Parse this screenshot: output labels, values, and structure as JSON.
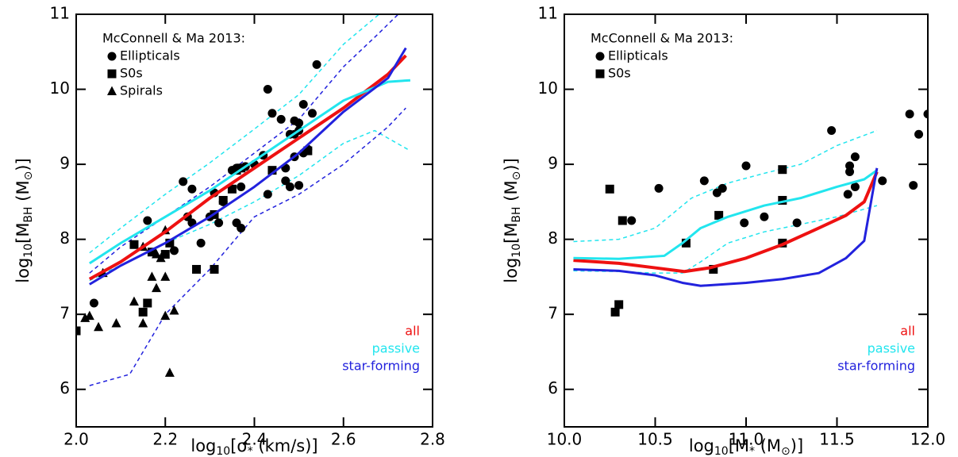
{
  "chart_data": [
    {
      "type": "line",
      "xlim": [
        2.0,
        2.8
      ],
      "ylim": [
        5.5,
        11
      ],
      "xticks": [
        {
          "value": 2.0,
          "label": "2.0"
        },
        {
          "value": 2.2,
          "label": "2.2"
        },
        {
          "value": 2.4,
          "label": "2.4"
        },
        {
          "value": 2.6,
          "label": "2.6"
        },
        {
          "value": 2.8,
          "label": "2.8"
        }
      ],
      "yticks": [
        6,
        7,
        8,
        9,
        10,
        11
      ],
      "x_label": [
        "log",
        "10",
        "[σ",
        "*",
        " (km/s)]"
      ],
      "y_label": [
        "log",
        "10",
        "[M",
        "BH",
        " (M",
        "⊙",
        ")]"
      ],
      "legend_title": "McConnell & Ma 2013:",
      "scatter_legend_loc": "upper left",
      "legend_loc": "lower right",
      "scatter": [
        {
          "name": "Ellipticals",
          "marker": "circle",
          "color": "#000000",
          "x": [
            2.54,
            2.43,
            2.44,
            2.46,
            2.48,
            2.49,
            2.5,
            2.51,
            2.53,
            2.5,
            2.42,
            2.4,
            2.38,
            2.36,
            2.37,
            2.36,
            2.37,
            2.32,
            2.3,
            2.31,
            2.33,
            2.35,
            2.26,
            2.24,
            2.25,
            2.26,
            2.28,
            2.22,
            2.16,
            2.43,
            2.47,
            2.48,
            2.5,
            2.47,
            2.49,
            2.51,
            2.52,
            2.04,
            2.49
          ],
          "values": [
            10.33,
            10.0,
            9.68,
            9.6,
            9.4,
            9.58,
            9.45,
            9.8,
            9.68,
            9.55,
            9.12,
            9.0,
            8.97,
            8.95,
            8.7,
            8.22,
            8.15,
            8.22,
            8.3,
            8.62,
            8.5,
            8.92,
            8.67,
            8.77,
            8.3,
            8.22,
            7.95,
            7.85,
            8.25,
            8.6,
            8.78,
            8.7,
            8.72,
            8.95,
            9.1,
            9.15,
            9.2,
            7.15,
            9.4
          ]
        },
        {
          "name": "S0s",
          "marker": "square",
          "color": "#000000",
          "x": [
            2.13,
            2.17,
            2.21,
            2.2,
            2.27,
            2.31,
            2.31,
            2.33,
            2.35,
            2.36,
            2.37,
            2.44,
            2.52,
            2.16,
            2.15,
            2.0
          ],
          "values": [
            7.93,
            7.83,
            7.95,
            7.8,
            7.6,
            7.6,
            8.33,
            8.52,
            8.67,
            8.92,
            8.95,
            8.92,
            9.18,
            7.15,
            7.03,
            6.78
          ]
        },
        {
          "name": "Spirals",
          "marker": "triangle",
          "color": "#000000",
          "x": [
            2.02,
            2.03,
            2.05,
            2.06,
            2.09,
            2.13,
            2.15,
            2.17,
            2.18,
            2.19,
            2.2,
            2.2,
            2.21,
            2.22,
            2.2,
            2.15,
            2.18
          ],
          "values": [
            6.95,
            6.98,
            6.83,
            7.55,
            6.88,
            7.17,
            6.88,
            7.5,
            7.35,
            7.75,
            7.5,
            6.98,
            6.22,
            7.05,
            8.12,
            7.9,
            7.8
          ]
        }
      ],
      "series": [
        {
          "name": "all",
          "color": "#ee1111",
          "width": 4,
          "x": [
            2.03,
            2.1,
            2.2,
            2.3,
            2.4,
            2.5,
            2.6,
            2.7,
            2.74
          ],
          "values": [
            7.47,
            7.7,
            8.1,
            8.55,
            8.95,
            9.35,
            9.75,
            10.2,
            10.45
          ]
        },
        {
          "name": "passive",
          "color": "#22e5ee",
          "width": 3,
          "x": [
            2.03,
            2.1,
            2.2,
            2.3,
            2.4,
            2.5,
            2.6,
            2.7,
            2.75
          ],
          "values": [
            7.68,
            7.95,
            8.3,
            8.65,
            9.05,
            9.45,
            9.85,
            10.1,
            10.12
          ],
          "upper": {
            "x": [
              2.03,
              2.1,
              2.2,
              2.3,
              2.4,
              2.5,
              2.6,
              2.68
            ],
            "values": [
              7.82,
              8.15,
              8.6,
              9.02,
              9.47,
              9.93,
              10.6,
              11.0
            ]
          },
          "lower": {
            "x": [
              2.03,
              2.2,
              2.3,
              2.4,
              2.5,
              2.6,
              2.67,
              2.75
            ],
            "values": [
              7.45,
              7.95,
              8.2,
              8.5,
              8.85,
              9.28,
              9.45,
              9.18
            ]
          }
        },
        {
          "name": "star-forming",
          "color": "#2222dd",
          "width": 3,
          "x": [
            2.03,
            2.1,
            2.2,
            2.3,
            2.4,
            2.5,
            2.6,
            2.7,
            2.74
          ],
          "values": [
            7.4,
            7.65,
            7.95,
            8.3,
            8.7,
            9.15,
            9.7,
            10.15,
            10.55
          ],
          "upper": {
            "x": [
              2.03,
              2.1,
              2.2,
              2.3,
              2.4,
              2.5,
              2.6,
              2.68,
              2.74
            ],
            "values": [
              7.55,
              7.9,
              8.3,
              8.7,
              9.15,
              9.6,
              10.3,
              10.75,
              11.1
            ]
          },
          "lower": {
            "x": [
              2.03,
              2.12,
              2.2,
              2.3,
              2.4,
              2.5,
              2.6,
              2.7,
              2.74
            ],
            "values": [
              6.05,
              6.2,
              7.0,
              7.6,
              8.3,
              8.6,
              9.0,
              9.5,
              9.75
            ]
          }
        }
      ]
    },
    {
      "type": "line",
      "xlim": [
        10.0,
        12.0
      ],
      "ylim": [
        5.5,
        11
      ],
      "xticks": [
        {
          "value": 10.0,
          "label": "10.0"
        },
        10.5,
        {
          "value": 11.0,
          "label": "11.0"
        },
        11.5,
        {
          "value": 12.0,
          "label": "12.0"
        }
      ],
      "yticks": [
        6,
        7,
        8,
        9,
        10,
        11
      ],
      "x_label": [
        "log",
        "10",
        "[M",
        "*",
        " (M",
        "⊙",
        ")]"
      ],
      "y_label": [
        "log",
        "10",
        "[M",
        "BH",
        " (M",
        "⊙",
        ")]"
      ],
      "legend_title": "McConnell & Ma 2013:",
      "scatter_legend_loc": "upper left",
      "legend_loc": "lower right",
      "scatter": [
        {
          "name": "Ellipticals",
          "marker": "circle",
          "color": "#000000",
          "x": [
            10.37,
            10.52,
            10.77,
            10.84,
            10.87,
            11.0,
            10.99,
            11.1,
            11.28,
            11.47,
            11.56,
            11.57,
            11.57,
            11.6,
            11.6,
            11.75,
            11.9,
            11.92,
            11.95,
            12.0
          ],
          "values": [
            8.25,
            8.68,
            8.78,
            8.62,
            8.68,
            8.98,
            8.22,
            8.3,
            8.22,
            9.45,
            8.6,
            8.9,
            8.98,
            8.7,
            9.1,
            8.78,
            9.67,
            8.72,
            9.4,
            9.67
          ]
        },
        {
          "name": "S0s",
          "marker": "square",
          "color": "#000000",
          "x": [
            10.25,
            10.32,
            10.67,
            10.82,
            10.85,
            11.2,
            11.2,
            11.2,
            10.28,
            10.3
          ],
          "values": [
            8.67,
            8.25,
            7.95,
            7.6,
            8.32,
            8.93,
            8.52,
            7.95,
            7.03,
            7.13
          ]
        }
      ],
      "series": [
        {
          "name": "all",
          "color": "#ee1111",
          "width": 4,
          "x": [
            10.05,
            10.3,
            10.5,
            10.66,
            10.8,
            11.0,
            11.2,
            11.4,
            11.55,
            11.65,
            11.72
          ],
          "values": [
            7.72,
            7.68,
            7.62,
            7.57,
            7.62,
            7.75,
            7.93,
            8.15,
            8.32,
            8.5,
            8.9
          ]
        },
        {
          "name": "passive",
          "color": "#22e5ee",
          "width": 3,
          "x": [
            10.05,
            10.3,
            10.55,
            10.65,
            10.75,
            10.9,
            11.1,
            11.3,
            11.5,
            11.65,
            11.72
          ],
          "values": [
            7.75,
            7.74,
            7.78,
            7.95,
            8.15,
            8.3,
            8.45,
            8.55,
            8.7,
            8.8,
            8.92
          ],
          "upper": {
            "x": [
              10.05,
              10.3,
              10.5,
              10.7,
              10.9,
              11.1,
              11.3,
              11.5,
              11.72
            ],
            "values": [
              7.97,
              8.0,
              8.15,
              8.55,
              8.75,
              8.88,
              9.0,
              9.25,
              9.45
            ]
          },
          "lower": {
            "x": [
              10.05,
              10.3,
              10.5,
              10.65,
              10.75,
              10.9,
              11.1,
              11.3,
              11.5,
              11.72
            ],
            "values": [
              7.58,
              7.57,
              7.55,
              7.55,
              7.7,
              7.95,
              8.1,
              8.2,
              8.3,
              8.45
            ]
          }
        },
        {
          "name": "star-forming",
          "color": "#2222dd",
          "width": 3,
          "x": [
            10.05,
            10.3,
            10.5,
            10.65,
            10.75,
            11.0,
            11.2,
            11.4,
            11.55,
            11.65,
            11.72
          ],
          "values": [
            7.6,
            7.58,
            7.52,
            7.42,
            7.38,
            7.42,
            7.47,
            7.55,
            7.75,
            7.98,
            8.95
          ]
        }
      ]
    }
  ]
}
